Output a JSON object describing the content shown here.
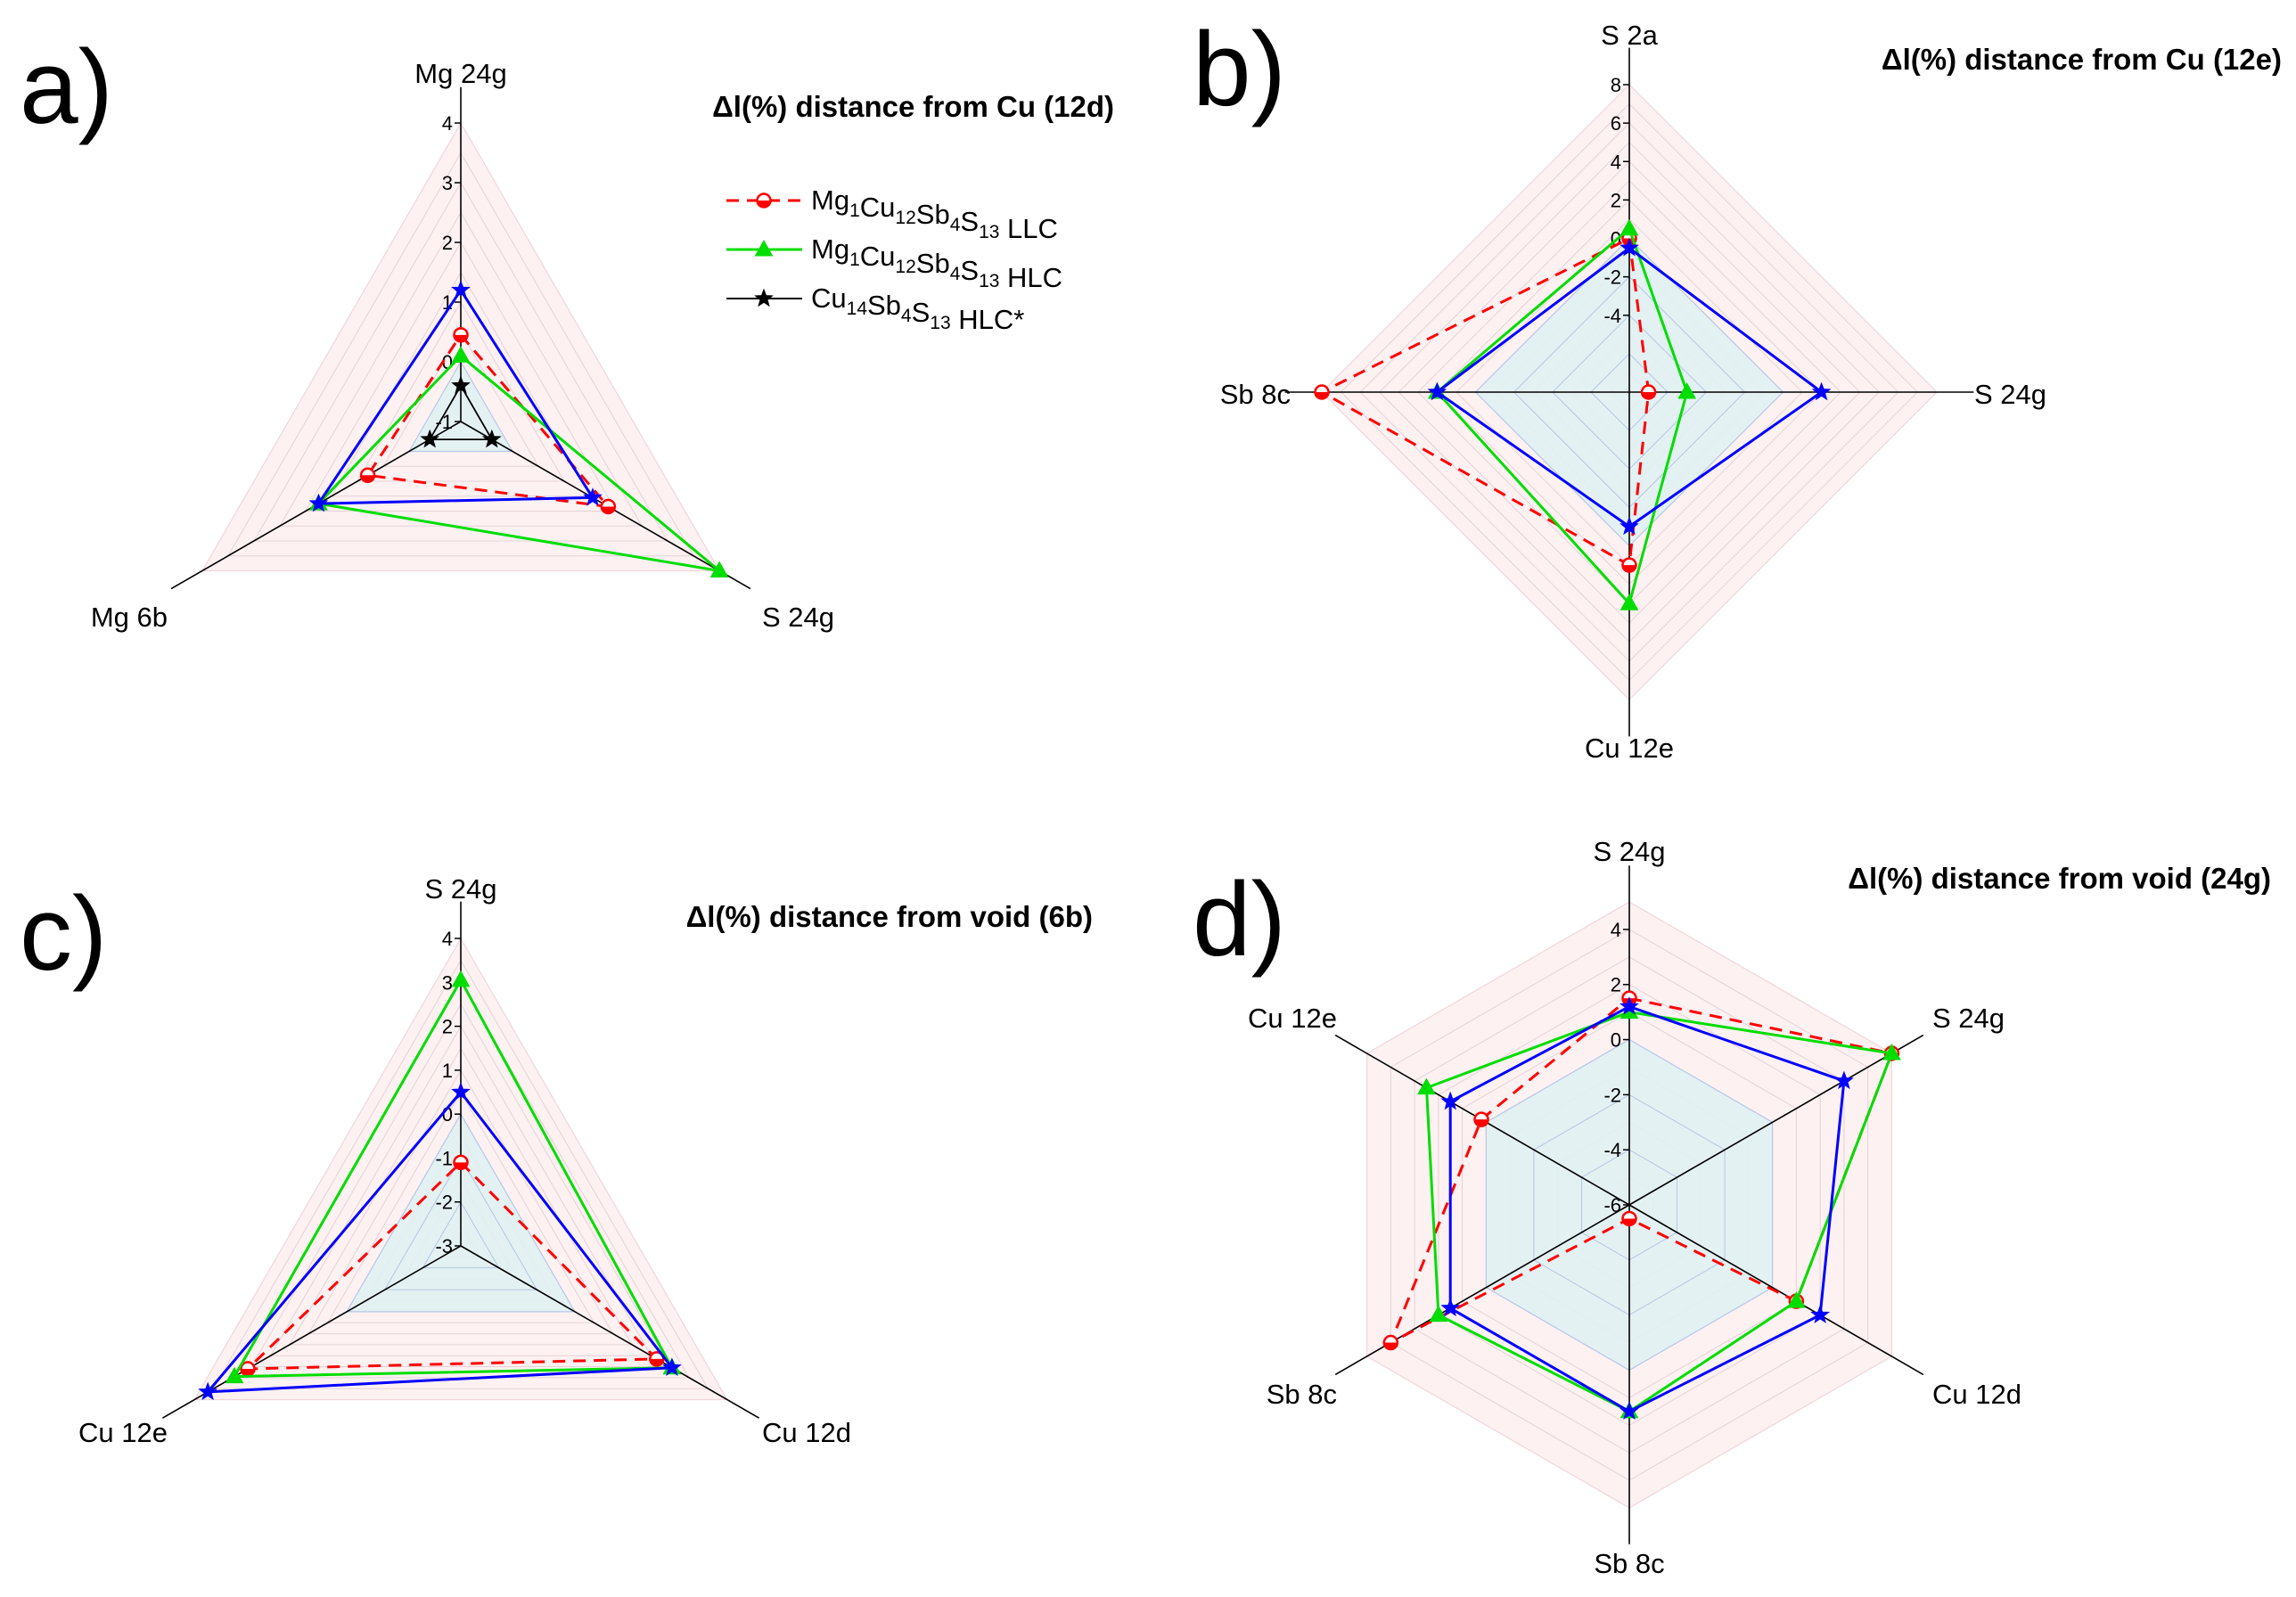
{
  "legend": {
    "items": [
      {
        "formula": [
          {
            "t": "Mg"
          },
          {
            "t": "1",
            "sub": true
          },
          {
            "t": "Cu"
          },
          {
            "t": "12",
            "sub": true
          },
          {
            "t": "Sb"
          },
          {
            "t": "4",
            "sub": true
          },
          {
            "t": "S"
          },
          {
            "t": "13",
            "sub": true
          },
          {
            "t": " LLC"
          }
        ],
        "color": "#ff0000",
        "dash": true,
        "marker": "half-circle"
      },
      {
        "formula": [
          {
            "t": "Mg"
          },
          {
            "t": "1",
            "sub": true
          },
          {
            "t": "Cu"
          },
          {
            "t": "12",
            "sub": true
          },
          {
            "t": "Sb"
          },
          {
            "t": "4",
            "sub": true
          },
          {
            "t": "S"
          },
          {
            "t": "13",
            "sub": true
          },
          {
            "t": " HLC"
          }
        ],
        "color": "#00dd00",
        "dash": false,
        "marker": "triangle"
      },
      {
        "formula": [
          {
            "t": "Cu"
          },
          {
            "t": "14",
            "sub": true
          },
          {
            "t": "Sb"
          },
          {
            "t": "4",
            "sub": true
          },
          {
            "t": "S"
          },
          {
            "t": "13",
            "sub": true
          },
          {
            "t": " HLC*"
          }
        ],
        "color": "#000000",
        "dash": false,
        "marker": "star"
      }
    ]
  },
  "chart_data": [
    {
      "type": "radar",
      "panel": "a)",
      "title": "Δl(%) distance from Cu (12d)",
      "axes": [
        "Mg 24g",
        "S 24g",
        "Mg 6b"
      ],
      "rlim": [
        -1,
        4
      ],
      "ticks": [
        4,
        3,
        2,
        1,
        0,
        -1
      ],
      "series": [
        {
          "color": "#ff0000",
          "values": [
            0.45,
            1.85,
            0.8
          ]
        },
        {
          "color": "#00dd00",
          "values": [
            0.1,
            4.0,
            1.75
          ]
        },
        {
          "color": "#0000ff",
          "values": [
            1.2,
            1.55,
            1.75
          ]
        },
        {
          "color": "#000000",
          "values": [
            -0.4,
            -0.4,
            -0.4
          ]
        }
      ]
    },
    {
      "type": "radar",
      "panel": "b)",
      "title": "Δl(%) distance from Cu (12e)",
      "axes": [
        "S 2a",
        "S 24g",
        "Cu 12e",
        "Sb 8c"
      ],
      "rlim": [
        -8,
        8
      ],
      "ticks": [
        8,
        6,
        4,
        2,
        0,
        -2,
        -4
      ],
      "series": [
        {
          "color": "#ff0000",
          "values": [
            0,
            -7,
            1,
            8
          ]
        },
        {
          "color": "#00dd00",
          "values": [
            0.5,
            -5,
            3,
            2
          ]
        },
        {
          "color": "#0000ff",
          "values": [
            -0.5,
            2,
            -1,
            2
          ]
        }
      ]
    },
    {
      "type": "radar",
      "panel": "c)",
      "title": "Δl(%) distance from void (6b)",
      "axes": [
        "S 24g",
        "Cu 12d",
        "Cu 12e"
      ],
      "rlim": [
        -3,
        4
      ],
      "ticks": [
        4,
        3,
        2,
        1,
        0,
        -1,
        -2,
        -3
      ],
      "series": [
        {
          "color": "#ff0000",
          "values": [
            -1.1,
            2.15,
            2.6
          ]
        },
        {
          "color": "#00dd00",
          "values": [
            3.05,
            2.55,
            2.95
          ]
        },
        {
          "color": "#0000ff",
          "values": [
            0.5,
            2.55,
            3.65
          ]
        }
      ]
    },
    {
      "type": "radar",
      "panel": "d)",
      "title": "Δl(%) distance from void (24g)",
      "axes": [
        "S 24g",
        "S 24g",
        "Cu 12d",
        "Sb 8c",
        "Sb 8c",
        "Cu 12e"
      ],
      "rlim": [
        -6,
        5
      ],
      "ticks": [
        4,
        2,
        0,
        -2,
        -4,
        -6
      ],
      "series": [
        {
          "color": "#ff0000",
          "values": [
            1.5,
            5,
            1,
            -5.5,
            4,
            0.2
          ]
        },
        {
          "color": "#00dd00",
          "values": [
            1,
            5,
            1,
            1.5,
            2,
            2.5
          ]
        },
        {
          "color": "#0000ff",
          "values": [
            1.2,
            3,
            2,
            1.5,
            1.5,
            1.5
          ]
        }
      ]
    }
  ]
}
